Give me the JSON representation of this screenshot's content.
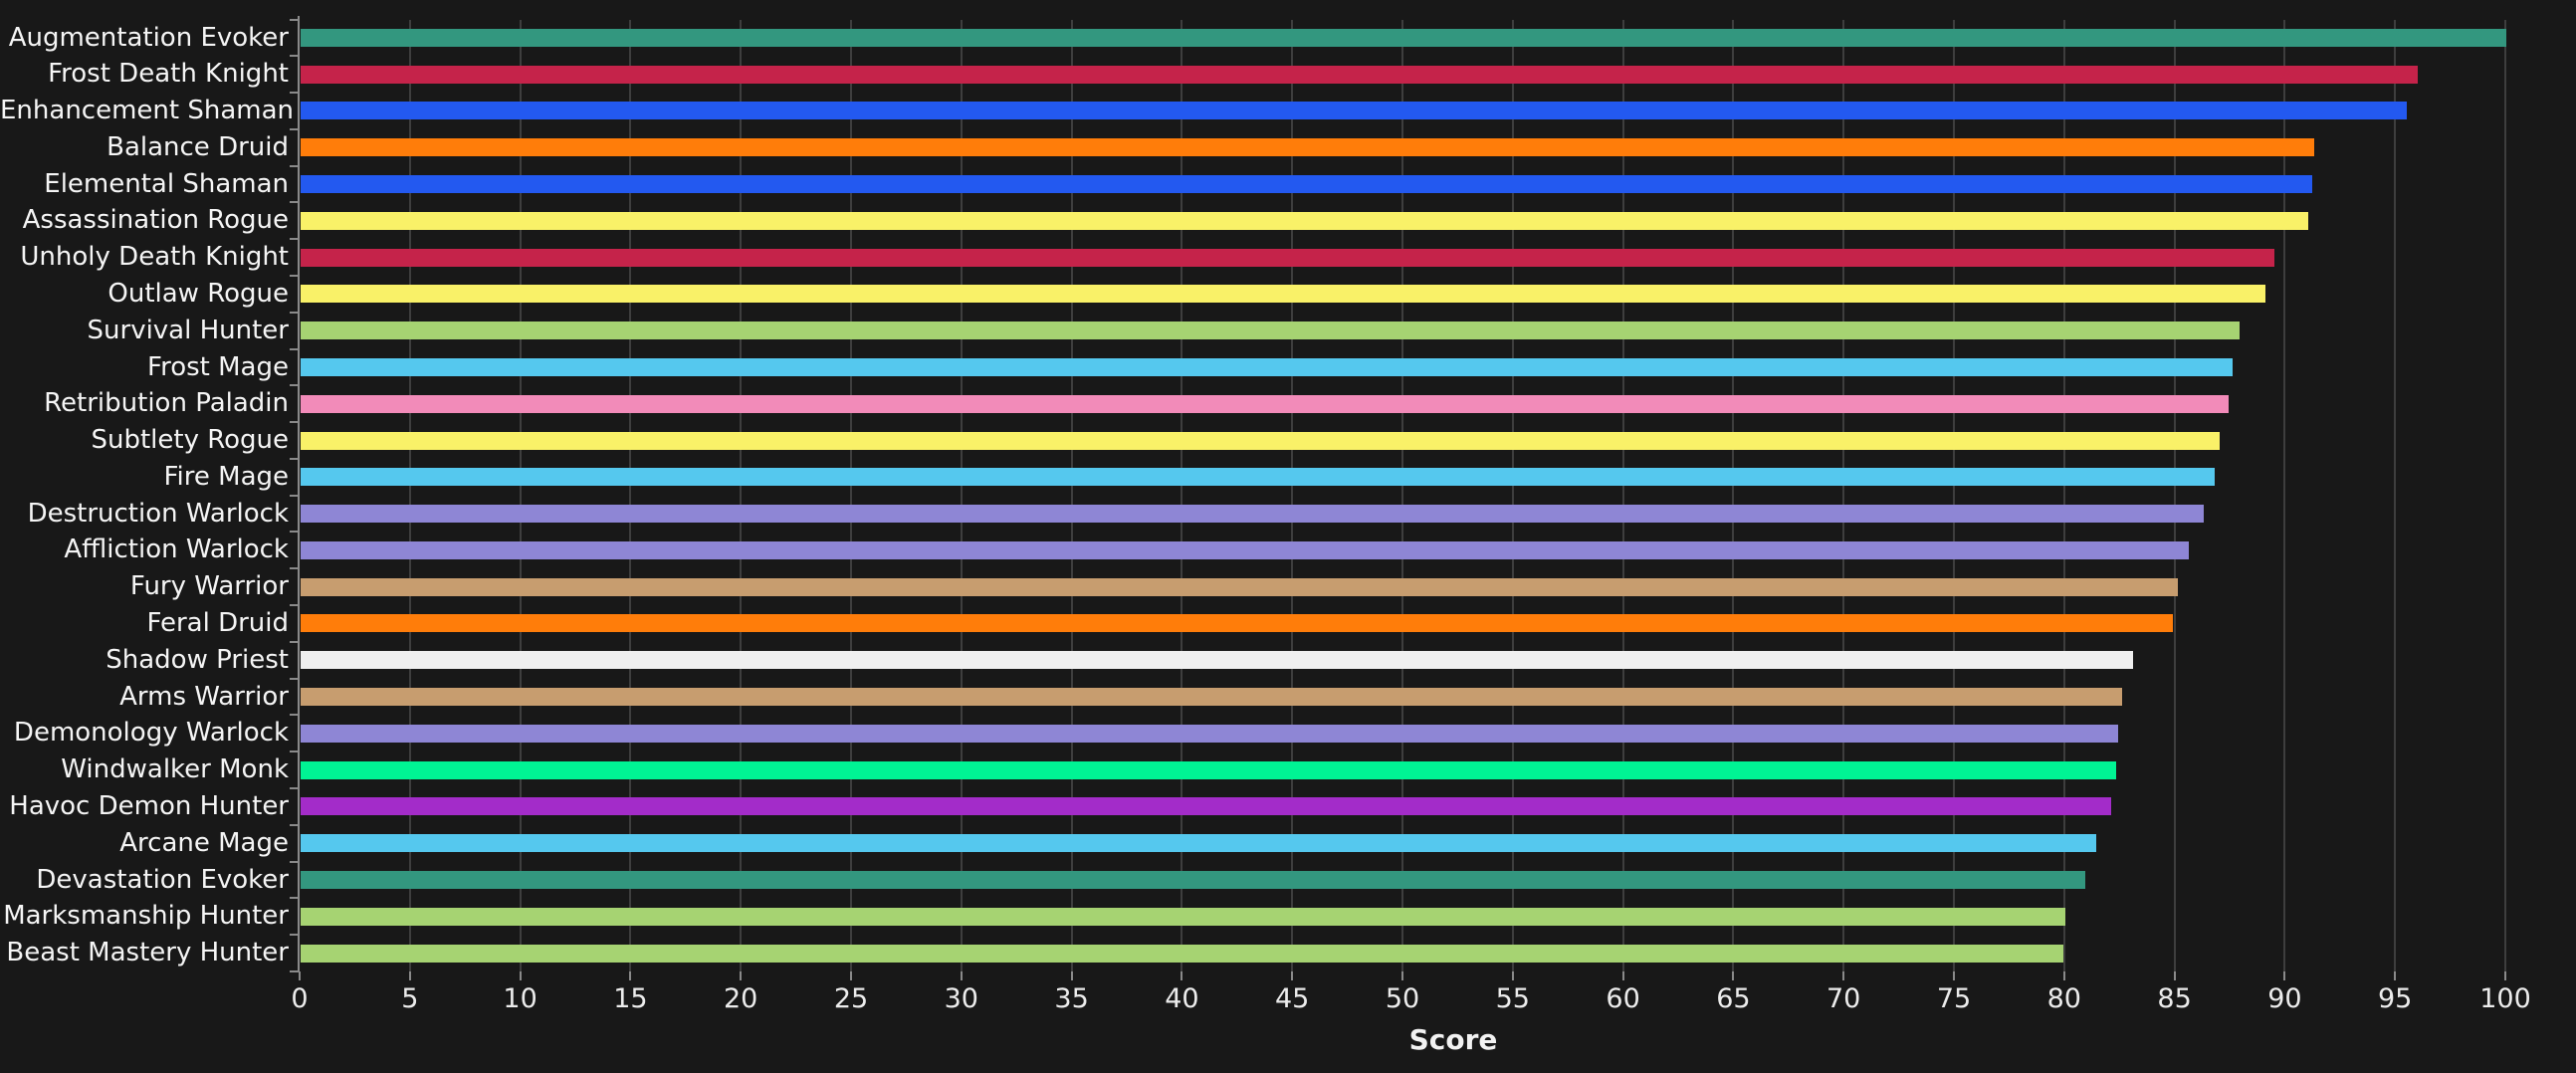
{
  "chart_data": {
    "type": "bar",
    "orientation": "horizontal",
    "title": "",
    "xlabel": "Score",
    "xlim": [
      0,
      100
    ],
    "xtick_step": 5,
    "xticks": [
      0,
      5,
      10,
      15,
      20,
      25,
      30,
      35,
      40,
      45,
      50,
      55,
      60,
      65,
      70,
      75,
      80,
      85,
      90,
      95,
      100
    ],
    "grid": true,
    "legend": false,
    "background_color": "#181818",
    "gridline_color": "#3e3e3e",
    "axis_color": "#8a8a8a",
    "tick_label_color": "#ececec",
    "category_label_color": "#f5f5f5",
    "categories": [
      "Augmentation Evoker",
      "Frost Death Knight",
      "Enhancement Shaman",
      "Balance Druid",
      "Elemental Shaman",
      "Assassination Rogue",
      "Unholy Death Knight",
      "Outlaw Rogue",
      "Survival Hunter",
      "Frost Mage",
      "Retribution Paladin",
      "Subtlety Rogue",
      "Fire Mage",
      "Destruction Warlock",
      "Affliction Warlock",
      "Fury Warrior",
      "Feral Druid",
      "Shadow Priest",
      "Arms Warrior",
      "Demonology Warlock",
      "Windwalker Monk",
      "Havoc Demon Hunter",
      "Arcane Mage",
      "Devastation Evoker",
      "Marksmanship Hunter",
      "Beast Mastery Hunter"
    ],
    "values": [
      100,
      96.0,
      95.5,
      91.3,
      91.2,
      91.0,
      89.5,
      89.1,
      87.9,
      87.6,
      87.4,
      87.0,
      86.8,
      86.3,
      85.6,
      85.1,
      84.9,
      83.1,
      82.6,
      82.4,
      82.3,
      82.1,
      81.4,
      80.9,
      80.0,
      79.9
    ],
    "colors": [
      "#33977F",
      "#C5234A",
      "#2359F0",
      "#FF7D0A",
      "#2359F0",
      "#F9F168",
      "#C5234A",
      "#F9F168",
      "#A6D372",
      "#55C8EE",
      "#F28BB9",
      "#F9F168",
      "#55C8EE",
      "#8E86D5",
      "#8E86D5",
      "#C79D6F",
      "#FF7D0A",
      "#EFEFEF",
      "#C79D6F",
      "#8E86D5",
      "#00F494",
      "#A32CC9",
      "#55C8EE",
      "#33977F",
      "#A6D372",
      "#A6D372"
    ]
  }
}
